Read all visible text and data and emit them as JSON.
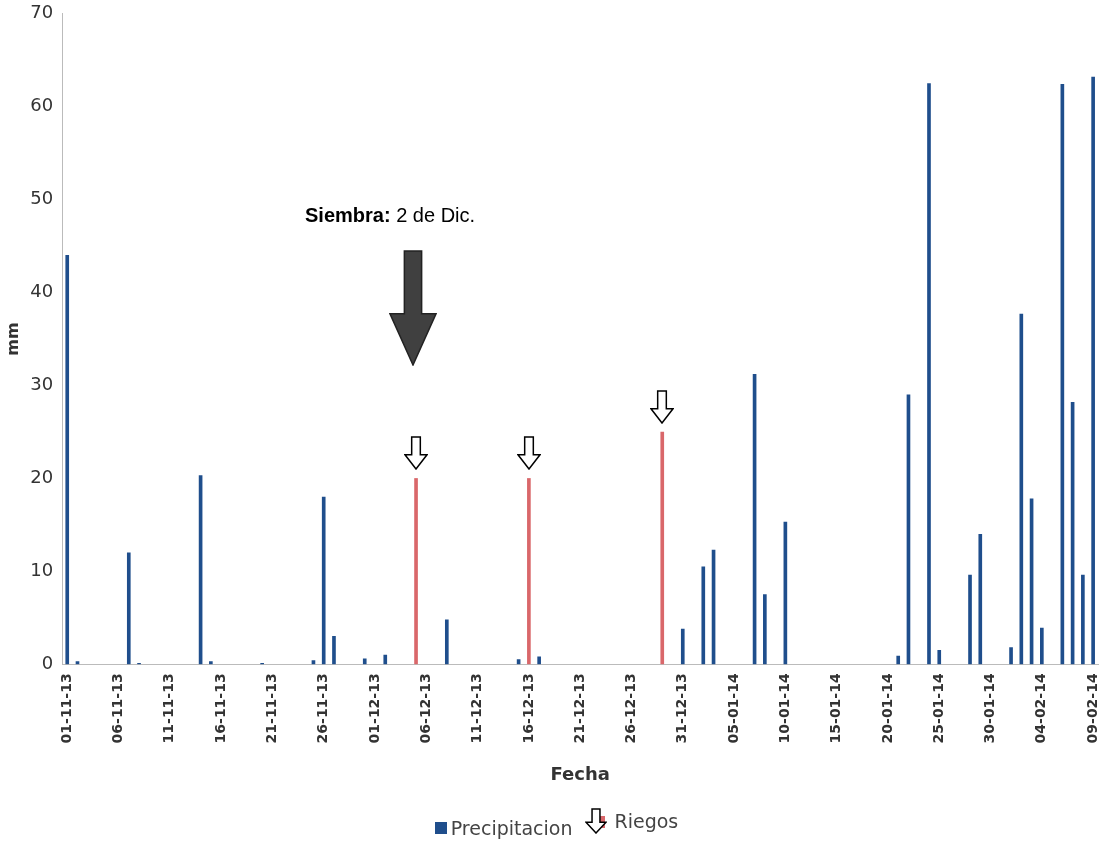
{
  "chart_data": {
    "type": "bar",
    "xlabel": "Fecha",
    "ylabel": "mm",
    "ylim": [
      0,
      70
    ],
    "yticks": [
      0,
      10,
      20,
      30,
      40,
      50,
      60,
      70
    ],
    "grid": false,
    "legend": "bottom",
    "categories": [
      "01-11-13",
      null,
      null,
      null,
      null,
      "06-11-13",
      null,
      null,
      null,
      null,
      "11-11-13",
      null,
      null,
      null,
      null,
      "16-11-13",
      null,
      null,
      null,
      null,
      "21-11-13",
      null,
      null,
      null,
      null,
      "26-11-13",
      null,
      null,
      null,
      null,
      "01-12-13",
      null,
      null,
      null,
      null,
      "06-12-13",
      null,
      null,
      null,
      null,
      "11-12-13",
      null,
      null,
      null,
      null,
      "16-12-13",
      null,
      null,
      null,
      null,
      "21-12-13",
      null,
      null,
      null,
      null,
      "26-12-13",
      null,
      null,
      null,
      null,
      "31-12-13",
      null,
      null,
      null,
      null,
      "05-01-14",
      null,
      null,
      null,
      null,
      "10-01-14",
      null,
      null,
      null,
      null,
      "15-01-14",
      null,
      null,
      null,
      null,
      "20-01-14",
      null,
      null,
      null,
      null,
      "25-01-14",
      null,
      null,
      null,
      null,
      "30-01-14",
      null,
      null,
      null,
      null,
      "04-02-14",
      null,
      null,
      null,
      null,
      "09-02-14"
    ],
    "series": [
      {
        "name": "Precipitacion",
        "color": "#1f4e8c",
        "values": [
          44,
          0.3,
          null,
          null,
          null,
          null,
          12,
          0.1,
          null,
          null,
          null,
          null,
          null,
          20.3,
          0.3,
          null,
          null,
          null,
          null,
          0.1,
          null,
          null,
          null,
          null,
          0.4,
          18,
          3,
          null,
          null,
          0.6,
          null,
          1,
          null,
          null,
          null,
          null,
          null,
          4.8,
          null,
          null,
          null,
          null,
          null,
          null,
          0.5,
          null,
          0.8,
          null,
          null,
          null,
          null,
          null,
          null,
          null,
          null,
          null,
          null,
          null,
          null,
          null,
          3.8,
          null,
          10.5,
          12.3,
          null,
          null,
          null,
          31.2,
          7.5,
          null,
          15.3,
          null,
          null,
          null,
          null,
          null,
          null,
          null,
          null,
          null,
          null,
          0.9,
          29,
          null,
          62.5,
          1.5,
          null,
          null,
          9.6,
          14,
          null,
          null,
          1.8,
          37.7,
          17.8,
          3.9,
          null,
          62.4,
          28.2,
          9.6,
          63.2
        ]
      },
      {
        "name": "Riegos",
        "color": "#d9676a",
        "values": [
          null,
          null,
          null,
          null,
          null,
          null,
          null,
          null,
          null,
          null,
          null,
          null,
          null,
          null,
          null,
          null,
          null,
          null,
          null,
          null,
          null,
          null,
          null,
          null,
          null,
          null,
          null,
          null,
          null,
          null,
          null,
          null,
          null,
          null,
          20,
          null,
          null,
          null,
          null,
          null,
          null,
          null,
          null,
          null,
          null,
          20,
          null,
          null,
          null,
          null,
          null,
          null,
          null,
          null,
          null,
          null,
          null,
          null,
          25,
          null,
          null,
          null,
          null,
          null,
          null,
          null,
          null,
          null,
          null,
          null,
          null,
          null,
          null,
          null,
          null,
          null,
          null,
          null,
          null,
          null,
          null,
          null,
          null,
          null,
          null,
          null,
          null,
          null,
          null,
          null,
          null,
          null,
          null,
          null,
          null,
          null,
          null,
          null,
          null,
          null,
          null
        ]
      }
    ],
    "annotations": [
      "Siembra: 2 de Dic."
    ]
  }
}
